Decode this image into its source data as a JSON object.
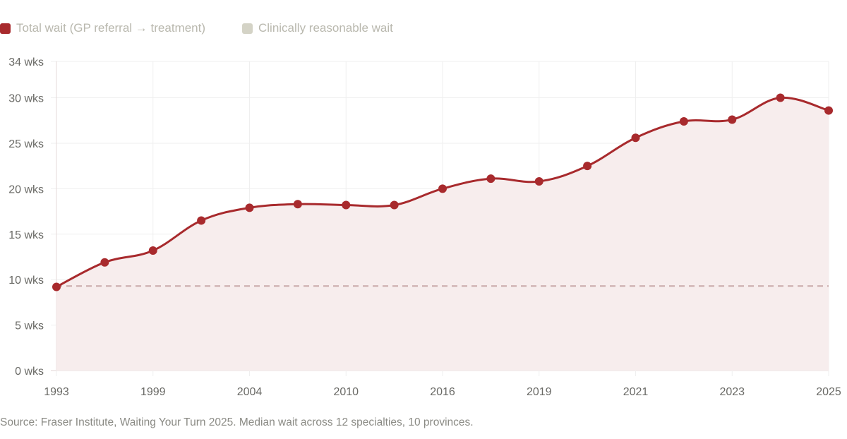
{
  "legend": [
    {
      "label": "Total wait (GP referral → treatment)",
      "color": "#a82a2d"
    },
    {
      "label": "Clinically reasonable wait",
      "color": "#d4d3c6"
    }
  ],
  "source": "Source: Fraser Institute, Waiting Your Turn 2025. Median wait across 12 specialties, 10 provinces.",
  "chart_data": {
    "type": "line",
    "title": "",
    "xlabel": "",
    "ylabel": "",
    "ylim": [
      0,
      34
    ],
    "y_ticks": [
      "0 wks",
      "5 wks",
      "10 wks",
      "15 wks",
      "20 wks",
      "25 wks",
      "30 wks",
      "34 wks"
    ],
    "y_tick_values": [
      0,
      5,
      10,
      15,
      20,
      25,
      30,
      34
    ],
    "categories": [
      "1993",
      "",
      "1999",
      "",
      "2004",
      "",
      "2010",
      "",
      "2016",
      "",
      "2019",
      "",
      "2021",
      "",
      "2023",
      "",
      "2025"
    ],
    "grid": true,
    "legend_position": "top-left",
    "series": [
      {
        "name": "Total wait (GP referral → treatment)",
        "color": "#a82a2d",
        "fill": "#f7eded",
        "values": [
          9.2,
          11.9,
          13.2,
          16.5,
          17.9,
          18.3,
          18.2,
          18.2,
          20.0,
          21.1,
          20.8,
          22.5,
          25.6,
          27.4,
          27.6,
          30.0,
          28.6
        ]
      },
      {
        "name": "Clinically reasonable wait",
        "color": "#c9a9a9",
        "style": "dashed",
        "values": [
          9.3,
          9.3,
          9.3,
          9.3,
          9.3,
          9.3,
          9.3,
          9.3,
          9.3,
          9.3,
          9.3,
          9.3,
          9.3,
          9.3,
          9.3,
          9.3,
          9.3
        ]
      }
    ]
  }
}
